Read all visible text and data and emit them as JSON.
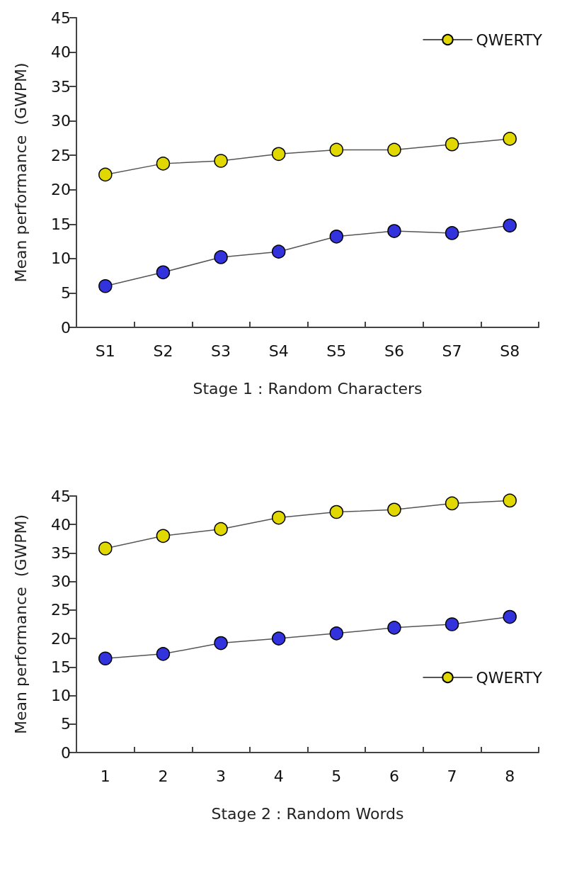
{
  "chart_data": [
    {
      "type": "line",
      "xlabel": "Stage 1 : Random Characters",
      "ylabel": "Mean performance  (GWPM)",
      "categories": [
        "S1",
        "S2",
        "S3",
        "S4",
        "S5",
        "S6",
        "S7",
        "S8"
      ],
      "ylim": [
        0,
        45
      ],
      "yticks": [
        0,
        5,
        10,
        15,
        20,
        25,
        30,
        35,
        40,
        45
      ],
      "marker": "circle",
      "legend": "top right",
      "grid": false,
      "series": [
        {
          "color": "#3333dd",
          "values": [
            6,
            8,
            10.2,
            11,
            13.2,
            14,
            13.7,
            14.8
          ]
        },
        {
          "name": "QWERTY",
          "color": "#e0d800",
          "values": [
            22.2,
            23.8,
            24.2,
            25.2,
            25.8,
            25.8,
            26.6,
            27.4
          ]
        }
      ]
    },
    {
      "type": "line",
      "xlabel": "Stage 2 : Random Words",
      "ylabel": "Mean performance  (GWPM)",
      "categories": [
        "1",
        "2",
        "3",
        "4",
        "5",
        "6",
        "7",
        "8"
      ],
      "ylim": [
        0,
        45
      ],
      "yticks": [
        0,
        5,
        10,
        15,
        20,
        25,
        30,
        35,
        40,
        45
      ],
      "marker": "circle",
      "legend": "bottom right",
      "grid": false,
      "series": [
        {
          "color": "#3333dd",
          "values": [
            16.5,
            17.3,
            19.2,
            20,
            20.9,
            21.9,
            22.5,
            23.8
          ]
        },
        {
          "name": "QWERTY",
          "color": "#e0d800",
          "values": [
            35.8,
            38,
            39.2,
            41.2,
            42.2,
            42.6,
            43.7,
            44.2
          ]
        }
      ]
    }
  ]
}
